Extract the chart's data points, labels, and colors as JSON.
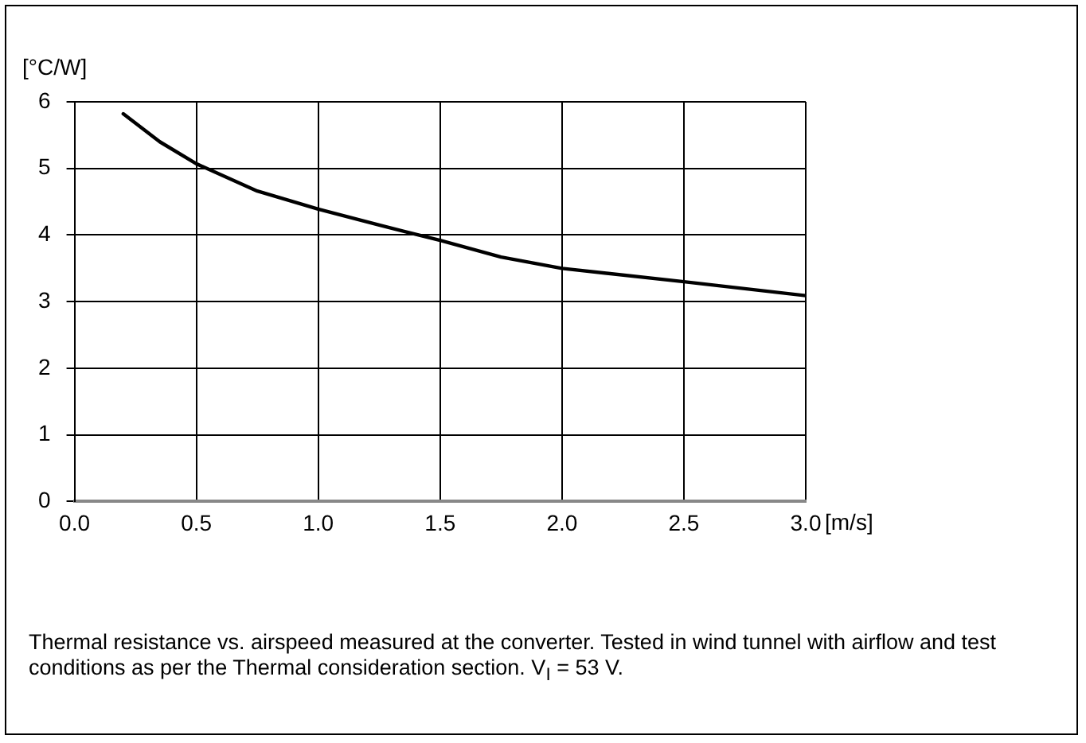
{
  "chart_data": {
    "type": "line",
    "ylabel": "[°C/W]",
    "xlabel": "[m/s]",
    "x": [
      0.2,
      0.35,
      0.5,
      0.75,
      1.0,
      1.25,
      1.5,
      1.75,
      2.0,
      2.5,
      3.0
    ],
    "series": [
      {
        "color": "#000000",
        "values": [
          5.82,
          5.4,
          5.07,
          4.66,
          4.39,
          4.15,
          3.92,
          3.67,
          3.5,
          3.3,
          3.09
        ]
      }
    ],
    "xlim": [
      0,
      3
    ],
    "xticks": [
      {
        "value": 0,
        "label": "0.0"
      },
      {
        "value": 0.5,
        "label": "0.5"
      },
      {
        "value": 1,
        "label": "1.0"
      },
      {
        "value": 1.5,
        "label": "1.5"
      },
      {
        "value": 2,
        "label": "2.0"
      },
      {
        "value": 2.5,
        "label": "2.5"
      },
      {
        "value": 3,
        "label": "3.0"
      }
    ],
    "ylim": [
      0,
      6
    ],
    "yticks": [
      0,
      1,
      2,
      3,
      4,
      5,
      6
    ],
    "grid": true,
    "marker": "none",
    "line_style": "solid",
    "legend": false,
    "annotations": [
      "Thermal resistance vs. airspeed measured at the converter. Tested in wind tunnel with airflow and test conditions as per the Thermal consideration section. V$_{I}$ = 53 V."
    ]
  }
}
